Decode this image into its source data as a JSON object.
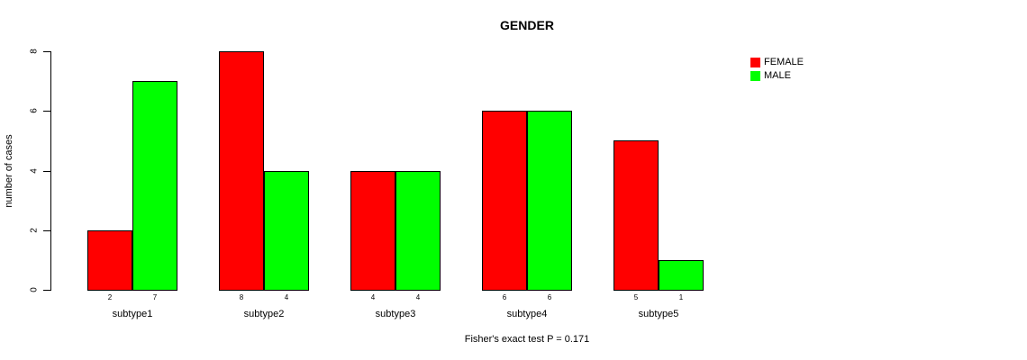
{
  "chart_data": {
    "type": "bar",
    "title": "GENDER",
    "ylabel": "number of cases",
    "xlabel": "",
    "caption": "Fisher's exact test P = 0.171",
    "categories": [
      "subtype1",
      "subtype2",
      "subtype3",
      "subtype4",
      "subtype5"
    ],
    "series": [
      {
        "name": "FEMALE",
        "color": "#FF0000",
        "values": [
          2,
          8,
          4,
          6,
          5
        ]
      },
      {
        "name": "MALE",
        "color": "#00FF00",
        "values": [
          7,
          4,
          4,
          6,
          1
        ]
      }
    ],
    "ylim": [
      0,
      8
    ],
    "yticks": [
      0,
      2,
      4,
      6,
      8
    ],
    "bar_value_labels": true,
    "legend_position": "top-right",
    "grid": false,
    "bar_border_color": "#000000"
  }
}
